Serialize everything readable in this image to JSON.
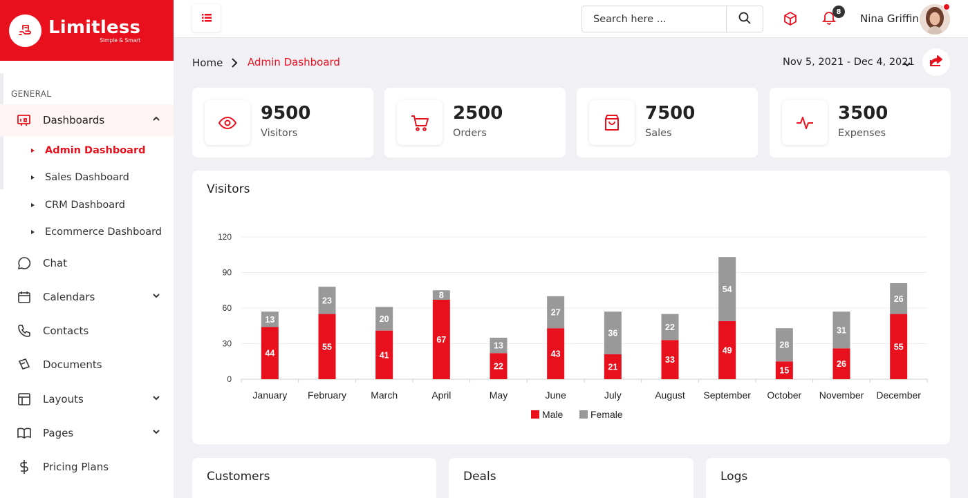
{
  "brand": {
    "name": "Limitless",
    "tagline": "Simple & Smart"
  },
  "sidebar": {
    "section": "GENERAL",
    "dashboards_label": "Dashboards",
    "sub_items": [
      {
        "label": "Admin Dashboard",
        "active": true
      },
      {
        "label": "Sales Dashboard",
        "active": false
      },
      {
        "label": "CRM Dashboard",
        "active": false
      },
      {
        "label": "Ecommerce Dashboard",
        "active": false
      }
    ],
    "items": [
      {
        "label": "Chat",
        "icon": "chat-icon"
      },
      {
        "label": "Calendars",
        "icon": "calendar-icon",
        "expandable": true
      },
      {
        "label": "Contacts",
        "icon": "phone-icon"
      },
      {
        "label": "Documents",
        "icon": "documents-icon"
      },
      {
        "label": "Layouts",
        "icon": "layout-icon",
        "expandable": true
      },
      {
        "label": "Pages",
        "icon": "book-icon",
        "expandable": true
      },
      {
        "label": "Pricing Plans",
        "icon": "dollar-icon"
      }
    ]
  },
  "header": {
    "search_placeholder": "Search here ...",
    "notification_count": "8",
    "user_name": "Nina Griffin"
  },
  "breadcrumb": {
    "home": "Home",
    "current": "Admin Dashboard"
  },
  "date_range": "Nov 5, 2021 - Dec 4, 2021",
  "stats": [
    {
      "value": "9500",
      "label": "Visitors",
      "icon": "eye-icon"
    },
    {
      "value": "2500",
      "label": "Orders",
      "icon": "cart-icon"
    },
    {
      "value": "7500",
      "label": "Sales",
      "icon": "bag-icon"
    },
    {
      "value": "3500",
      "label": "Expenses",
      "icon": "pulse-icon"
    }
  ],
  "visitors_card": {
    "title": "Visitors"
  },
  "chart_data": {
    "type": "bar",
    "stacked": true,
    "categories": [
      "January",
      "February",
      "March",
      "April",
      "May",
      "June",
      "July",
      "August",
      "September",
      "October",
      "November",
      "December"
    ],
    "series": [
      {
        "name": "Male",
        "color": "#e8101d",
        "values": [
          44,
          55,
          41,
          67,
          22,
          43,
          21,
          33,
          49,
          15,
          26,
          55
        ]
      },
      {
        "name": "Female",
        "color": "#999999",
        "values": [
          13,
          23,
          20,
          8,
          13,
          27,
          36,
          22,
          54,
          28,
          31,
          26
        ]
      }
    ],
    "yticks": [
      0,
      30,
      60,
      90,
      120
    ],
    "ylim": [
      0,
      120
    ],
    "grid": true,
    "legend": "bottom"
  },
  "bottom_cards": [
    {
      "title": "Customers"
    },
    {
      "title": "Deals"
    },
    {
      "title": "Logs"
    }
  ],
  "colors": {
    "accent": "#e8101d",
    "background": "#f1f1f5"
  }
}
